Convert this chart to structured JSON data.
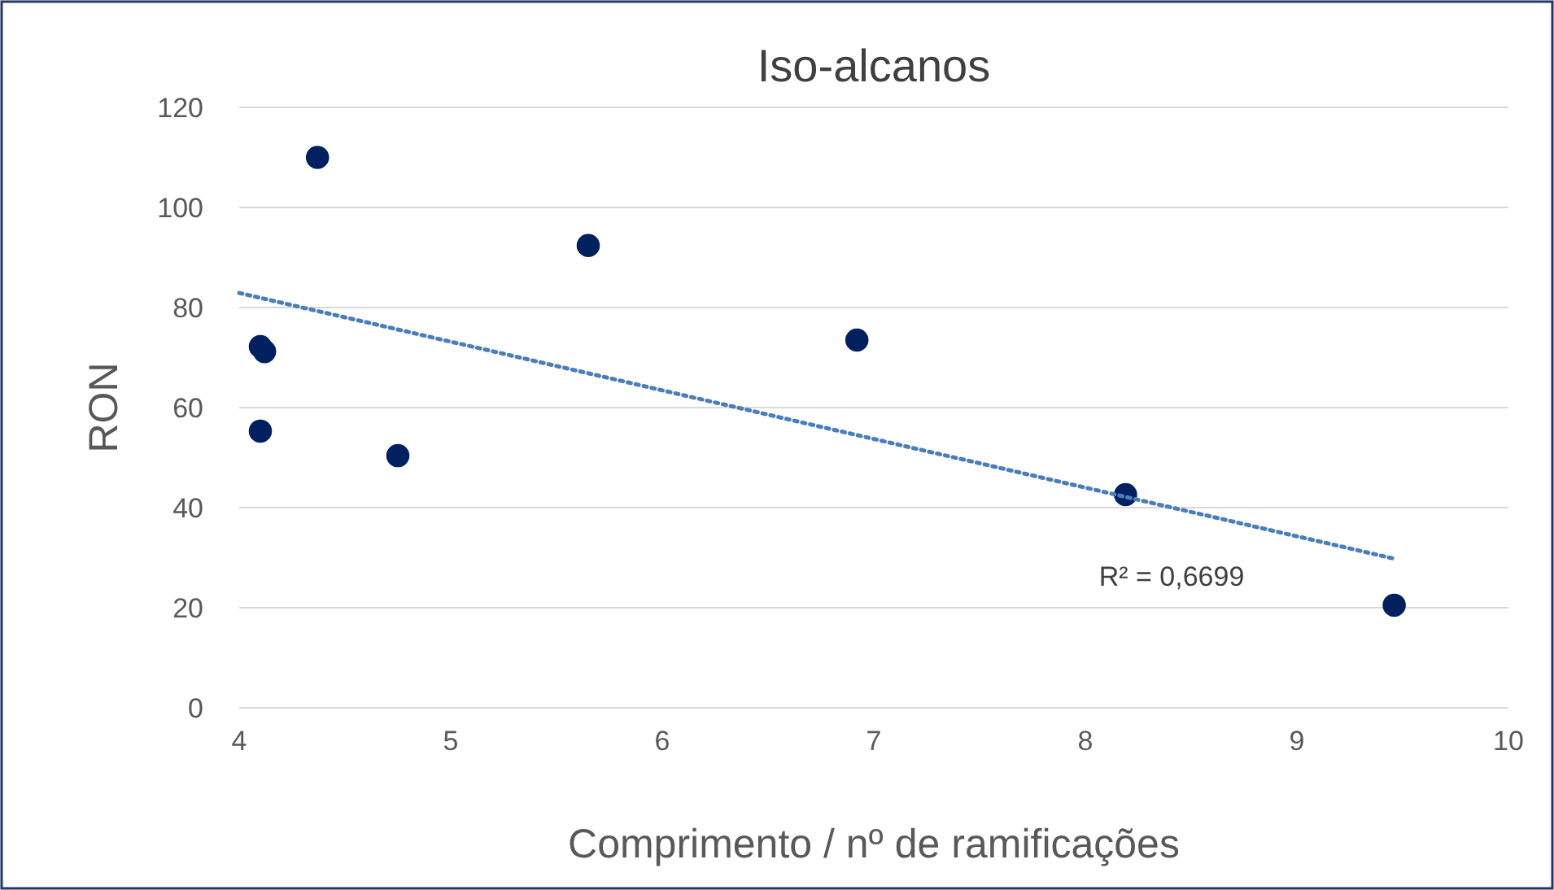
{
  "chart_data": {
    "type": "scatter",
    "title": "Iso-alcanos",
    "xlabel": "Comprimento / nº de ramificações",
    "ylabel": "RON",
    "xlim": [
      4,
      10
    ],
    "xticks": [
      4,
      5,
      6,
      7,
      8,
      9,
      10
    ],
    "ylim": [
      0,
      120
    ],
    "yticks": [
      0,
      20,
      40,
      60,
      80,
      100,
      120
    ],
    "grid": "y",
    "series": [
      {
        "marker": "circle",
        "color": "#002060",
        "x": [
          4.37,
          4.1,
          4.12,
          4.1,
          4.75,
          5.65,
          6.92,
          8.19,
          9.46
        ],
        "values": [
          110,
          72.2,
          71.2,
          55.3,
          50.4,
          92.4,
          73.5,
          42.6,
          20.5
        ]
      },
      {
        "type": "line",
        "color": "#4a7ebb",
        "line_style": "dotted",
        "x": [
          4,
          9.45
        ],
        "values": [
          82.9,
          29.9
        ]
      }
    ],
    "annotations": [
      "R² = 0,6699"
    ]
  }
}
